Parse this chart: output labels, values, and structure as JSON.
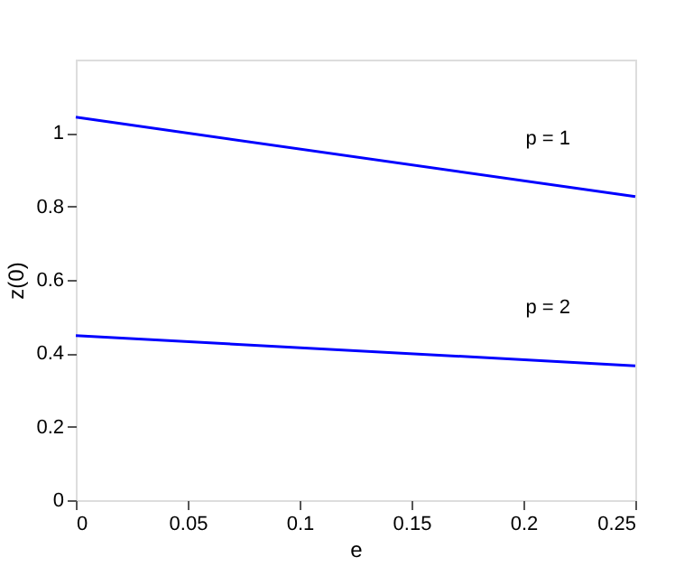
{
  "chart_data": {
    "type": "line",
    "xlabel": "e",
    "ylabel": "z(0)",
    "x": [
      0,
      0.25
    ],
    "series": [
      {
        "name": "p = 1",
        "color": "#0000ff",
        "values": [
          1.043,
          0.827
        ]
      },
      {
        "name": "p = 2",
        "color": "#0000ff",
        "values": [
          0.448,
          0.366
        ]
      }
    ],
    "xlim": [
      0,
      0.25
    ],
    "ylim": [
      0,
      1.2
    ],
    "xticks": [
      0,
      0.05,
      0.1,
      0.15,
      0.2,
      0.25
    ],
    "yticks": [
      0,
      0.2,
      0.4,
      0.6,
      0.8,
      1
    ],
    "grid": false,
    "legend": false,
    "marker": "none",
    "line_style": "solid"
  }
}
